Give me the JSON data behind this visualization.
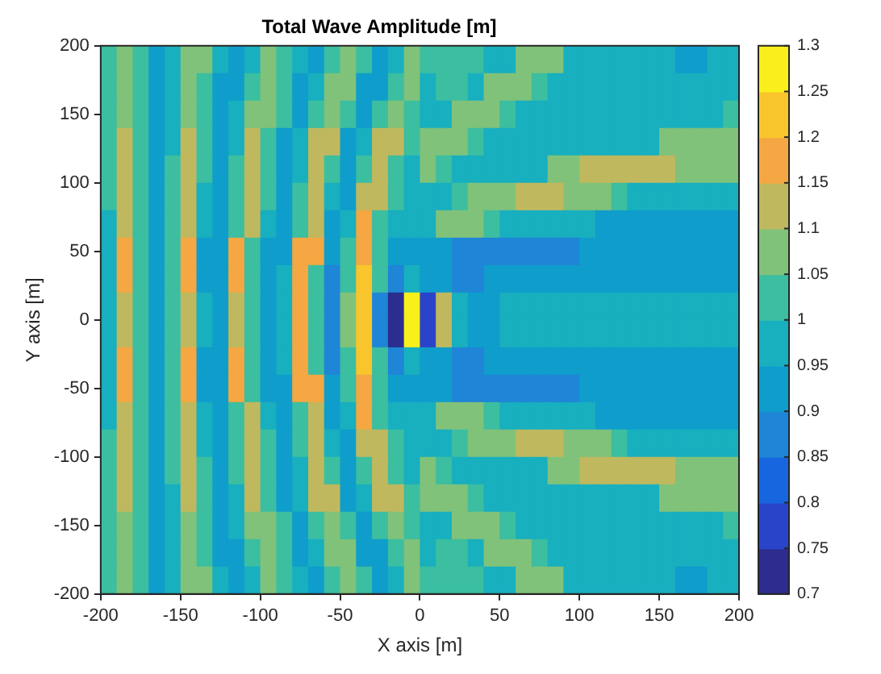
{
  "chart_data": {
    "type": "heatmap",
    "title": "Total Wave Amplitude [m]",
    "xlabel": "X axis [m]",
    "ylabel": "Y axis [m]",
    "x": [
      -195,
      -185,
      -175,
      -165,
      -155,
      -145,
      -135,
      -125,
      -115,
      -105,
      -95,
      -85,
      -75,
      -65,
      -55,
      -45,
      -35,
      -25,
      -15,
      -5,
      5,
      15,
      25,
      35,
      45,
      55,
      65,
      75,
      85,
      95,
      105,
      115,
      125,
      135,
      145,
      155,
      165,
      175,
      185,
      195
    ],
    "y": [
      190,
      170,
      150,
      130,
      110,
      90,
      70,
      50,
      30,
      10,
      -10,
      -30,
      -50,
      -70,
      -90,
      -110,
      -130,
      -150,
      -170,
      -190
    ],
    "xlim": [
      -200,
      200
    ],
    "xticks": [
      -200,
      -150,
      -100,
      -50,
      0,
      50,
      100,
      150,
      200
    ],
    "ylim": [
      -200,
      200
    ],
    "yticks": [
      -200,
      -150,
      -100,
      -50,
      0,
      50,
      100,
      150,
      200
    ],
    "clim": [
      0.7,
      1.3
    ],
    "cticks": [
      0.7,
      0.75,
      0.8,
      0.85,
      0.9,
      0.95,
      1,
      1.05,
      1.1,
      1.15,
      1.2,
      1.25,
      1.3
    ],
    "cells": [
      [
        1.02,
        1.07,
        1.02,
        0.93,
        0.97,
        1.07,
        1.07,
        0.97,
        0.93,
        0.97,
        1.07,
        1.02,
        0.97,
        0.93,
        1.02,
        1.07,
        1.02,
        0.93,
        0.97,
        1.07,
        1.02,
        1.02,
        1.02,
        1.02,
        0.97,
        0.97,
        1.07,
        1.07,
        1.07,
        0.97,
        0.97,
        0.97,
        0.97,
        0.97,
        0.97,
        0.97,
        0.93,
        0.93,
        0.97,
        0.97
      ],
      [
        1.02,
        1.08,
        1.02,
        0.93,
        0.97,
        1.08,
        1.02,
        0.93,
        0.93,
        1.02,
        1.08,
        1.02,
        0.93,
        0.97,
        1.08,
        1.08,
        0.93,
        0.93,
        1.02,
        1.08,
        0.97,
        1.02,
        1.02,
        0.97,
        1.07,
        1.07,
        1.07,
        1.02,
        0.97,
        0.97,
        0.97,
        0.97,
        0.97,
        0.97,
        0.97,
        0.97,
        0.97,
        0.97,
        0.97,
        0.97
      ],
      [
        1.02,
        1.08,
        1.02,
        0.92,
        0.97,
        1.08,
        1.02,
        0.92,
        0.97,
        1.08,
        1.08,
        1.02,
        0.92,
        1.02,
        1.08,
        1.02,
        0.92,
        1.02,
        1.08,
        1.02,
        0.97,
        0.97,
        1.07,
        1.07,
        1.07,
        1.02,
        0.97,
        0.97,
        0.97,
        0.97,
        0.97,
        0.97,
        0.97,
        0.97,
        0.97,
        0.97,
        0.97,
        0.97,
        0.97,
        1.02
      ],
      [
        1.02,
        1.11,
        1.02,
        0.92,
        0.97,
        1.11,
        1.02,
        0.92,
        0.97,
        1.11,
        1.02,
        0.92,
        0.97,
        1.11,
        1.11,
        0.92,
        0.97,
        1.11,
        1.11,
        1.02,
        1.07,
        1.07,
        1.07,
        1.02,
        0.97,
        0.97,
        0.97,
        0.97,
        0.97,
        0.97,
        0.97,
        0.97,
        0.97,
        0.97,
        0.97,
        1.07,
        1.07,
        1.07,
        1.07,
        1.07
      ],
      [
        1.02,
        1.12,
        1.02,
        0.92,
        1.02,
        1.12,
        1.02,
        0.92,
        1.02,
        1.12,
        1.02,
        0.92,
        0.97,
        1.12,
        1.02,
        0.92,
        1.02,
        1.12,
        1.02,
        0.97,
        1.07,
        1.02,
        0.97,
        0.97,
        0.97,
        0.97,
        0.97,
        0.97,
        1.07,
        1.07,
        1.11,
        1.11,
        1.11,
        1.11,
        1.11,
        1.11,
        1.07,
        1.07,
        1.07,
        1.07
      ],
      [
        1.02,
        1.12,
        1.02,
        0.92,
        1.02,
        1.12,
        0.97,
        0.92,
        1.02,
        1.12,
        1.02,
        0.92,
        1.02,
        1.12,
        0.97,
        0.92,
        1.12,
        1.12,
        1.02,
        0.97,
        0.97,
        0.97,
        1.02,
        1.07,
        1.07,
        1.07,
        1.11,
        1.11,
        1.11,
        1.07,
        1.07,
        1.07,
        1.02,
        0.97,
        0.97,
        0.97,
        0.97,
        0.97,
        0.97,
        0.97
      ],
      [
        0.97,
        1.13,
        1.02,
        0.91,
        1.02,
        1.13,
        0.97,
        0.91,
        1.02,
        1.13,
        0.97,
        0.91,
        1.02,
        1.13,
        0.91,
        0.97,
        1.16,
        1.02,
        0.97,
        0.97,
        0.97,
        1.07,
        1.07,
        1.07,
        1.02,
        0.97,
        0.97,
        0.97,
        0.97,
        0.97,
        0.97,
        0.92,
        0.92,
        0.92,
        0.92,
        0.92,
        0.92,
        0.92,
        0.92,
        0.92
      ],
      [
        0.97,
        1.16,
        1.02,
        0.91,
        1.02,
        1.16,
        0.91,
        0.91,
        1.16,
        1.02,
        0.91,
        0.91,
        1.16,
        1.16,
        0.91,
        1.02,
        1.17,
        1.02,
        0.91,
        0.92,
        0.92,
        0.92,
        0.87,
        0.87,
        0.87,
        0.87,
        0.87,
        0.87,
        0.87,
        0.87,
        0.92,
        0.92,
        0.92,
        0.92,
        0.92,
        0.92,
        0.92,
        0.92,
        0.92,
        0.92
      ],
      [
        0.97,
        1.16,
        1.02,
        0.91,
        1.02,
        1.16,
        0.91,
        0.91,
        1.16,
        1.02,
        0.91,
        0.97,
        1.17,
        1.02,
        0.88,
        1.02,
        1.21,
        1.02,
        0.86,
        0.97,
        0.92,
        0.92,
        0.87,
        0.87,
        0.92,
        0.92,
        0.92,
        0.92,
        0.92,
        0.92,
        0.92,
        0.92,
        0.92,
        0.92,
        0.92,
        0.92,
        0.92,
        0.92,
        0.92,
        0.92
      ],
      [
        0.97,
        1.12,
        1.02,
        0.91,
        1.02,
        1.12,
        0.97,
        0.92,
        1.12,
        1.02,
        0.91,
        0.97,
        1.17,
        1.02,
        0.88,
        1.07,
        1.22,
        0.86,
        0.72,
        1.28,
        0.76,
        1.12,
        0.97,
        0.92,
        0.92,
        0.97,
        0.97,
        0.97,
        0.97,
        0.97,
        0.97,
        0.97,
        0.97,
        0.97,
        0.97,
        0.97,
        0.97,
        0.97,
        0.97,
        0.97
      ],
      [
        0.97,
        1.12,
        1.02,
        0.91,
        1.02,
        1.12,
        0.97,
        0.92,
        1.12,
        1.02,
        0.91,
        0.97,
        1.17,
        1.02,
        0.88,
        1.07,
        1.22,
        0.86,
        0.72,
        1.28,
        0.76,
        1.12,
        0.97,
        0.92,
        0.92,
        0.97,
        0.97,
        0.97,
        0.97,
        0.97,
        0.97,
        0.97,
        0.97,
        0.97,
        0.97,
        0.97,
        0.97,
        0.97,
        0.97,
        0.97
      ],
      [
        0.97,
        1.16,
        1.02,
        0.91,
        1.02,
        1.16,
        0.91,
        0.91,
        1.16,
        1.02,
        0.91,
        0.97,
        1.17,
        1.02,
        0.88,
        1.02,
        1.21,
        1.02,
        0.86,
        0.97,
        0.92,
        0.92,
        0.87,
        0.87,
        0.92,
        0.92,
        0.92,
        0.92,
        0.92,
        0.92,
        0.92,
        0.92,
        0.92,
        0.92,
        0.92,
        0.92,
        0.92,
        0.92,
        0.92,
        0.92
      ],
      [
        0.97,
        1.16,
        1.02,
        0.91,
        1.02,
        1.16,
        0.91,
        0.91,
        1.16,
        1.02,
        0.91,
        0.91,
        1.16,
        1.16,
        0.91,
        1.02,
        1.17,
        1.02,
        0.91,
        0.92,
        0.92,
        0.92,
        0.87,
        0.87,
        0.87,
        0.87,
        0.87,
        0.87,
        0.87,
        0.87,
        0.92,
        0.92,
        0.92,
        0.92,
        0.92,
        0.92,
        0.92,
        0.92,
        0.92,
        0.92
      ],
      [
        0.97,
        1.13,
        1.02,
        0.91,
        1.02,
        1.13,
        0.97,
        0.91,
        1.02,
        1.13,
        0.97,
        0.91,
        1.02,
        1.13,
        0.91,
        0.97,
        1.16,
        1.02,
        0.97,
        0.97,
        0.97,
        1.07,
        1.07,
        1.07,
        1.02,
        0.97,
        0.97,
        0.97,
        0.97,
        0.97,
        0.97,
        0.92,
        0.92,
        0.92,
        0.92,
        0.92,
        0.92,
        0.92,
        0.92,
        0.92
      ],
      [
        1.02,
        1.12,
        1.02,
        0.92,
        1.02,
        1.12,
        0.97,
        0.92,
        1.02,
        1.12,
        1.02,
        0.92,
        1.02,
        1.12,
        0.97,
        0.92,
        1.12,
        1.12,
        1.02,
        0.97,
        0.97,
        0.97,
        1.02,
        1.07,
        1.07,
        1.07,
        1.11,
        1.11,
        1.11,
        1.07,
        1.07,
        1.07,
        1.02,
        0.97,
        0.97,
        0.97,
        0.97,
        0.97,
        0.97,
        0.97
      ],
      [
        1.02,
        1.12,
        1.02,
        0.92,
        1.02,
        1.12,
        1.02,
        0.92,
        1.02,
        1.12,
        1.02,
        0.92,
        0.97,
        1.12,
        1.02,
        0.92,
        1.02,
        1.12,
        1.02,
        0.97,
        1.07,
        1.02,
        0.97,
        0.97,
        0.97,
        0.97,
        0.97,
        0.97,
        1.07,
        1.07,
        1.11,
        1.11,
        1.11,
        1.11,
        1.11,
        1.11,
        1.07,
        1.07,
        1.07,
        1.07
      ],
      [
        1.02,
        1.11,
        1.02,
        0.92,
        0.97,
        1.11,
        1.02,
        0.92,
        0.97,
        1.11,
        1.02,
        0.92,
        0.97,
        1.11,
        1.11,
        0.92,
        0.97,
        1.11,
        1.11,
        1.02,
        1.07,
        1.07,
        1.07,
        1.02,
        0.97,
        0.97,
        0.97,
        0.97,
        0.97,
        0.97,
        0.97,
        0.97,
        0.97,
        0.97,
        0.97,
        1.07,
        1.07,
        1.07,
        1.07,
        1.07
      ],
      [
        1.02,
        1.08,
        1.02,
        0.92,
        0.97,
        1.08,
        1.02,
        0.92,
        0.97,
        1.08,
        1.08,
        1.02,
        0.92,
        1.02,
        1.08,
        1.02,
        0.92,
        1.02,
        1.08,
        1.02,
        0.97,
        0.97,
        1.07,
        1.07,
        1.07,
        1.02,
        0.97,
        0.97,
        0.97,
        0.97,
        0.97,
        0.97,
        0.97,
        0.97,
        0.97,
        0.97,
        0.97,
        0.97,
        0.97,
        1.02
      ],
      [
        1.02,
        1.08,
        1.02,
        0.93,
        0.97,
        1.08,
        1.02,
        0.93,
        0.93,
        1.02,
        1.08,
        1.02,
        0.93,
        0.97,
        1.08,
        1.08,
        0.93,
        0.93,
        1.02,
        1.08,
        0.97,
        1.02,
        1.02,
        0.97,
        1.07,
        1.07,
        1.07,
        1.02,
        0.97,
        0.97,
        0.97,
        0.97,
        0.97,
        0.97,
        0.97,
        0.97,
        0.97,
        0.97,
        0.97,
        0.97
      ],
      [
        1.02,
        1.07,
        1.02,
        0.93,
        0.97,
        1.07,
        1.07,
        0.97,
        0.93,
        0.97,
        1.07,
        1.02,
        0.97,
        0.93,
        1.02,
        1.07,
        1.02,
        0.93,
        0.97,
        1.07,
        1.02,
        1.02,
        1.02,
        1.02,
        0.97,
        0.97,
        1.07,
        1.07,
        1.07,
        0.97,
        0.97,
        0.97,
        0.97,
        0.97,
        0.97,
        0.97,
        0.93,
        0.93,
        0.97,
        0.97
      ]
    ]
  }
}
